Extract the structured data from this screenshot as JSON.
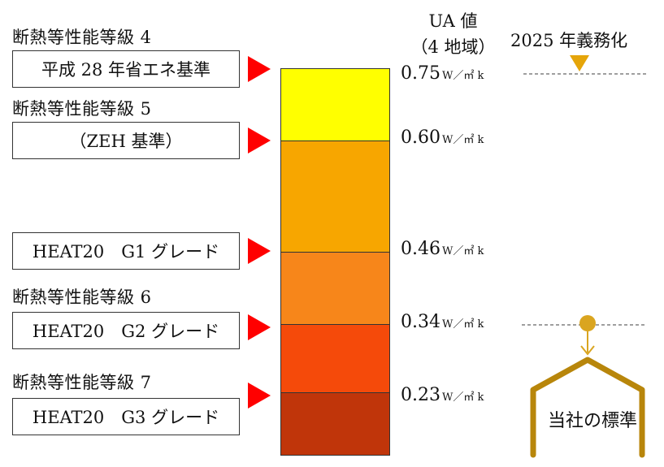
{
  "header": {
    "ua_title": "UA 値",
    "ua_region": "（4 地域）",
    "mandate": "2025 年義務化"
  },
  "grades": [
    {
      "label": "断熱等性能等級 4",
      "box": "平成 28 年省エネ基準"
    },
    {
      "label": "断熱等性能等級 5",
      "box": "（ZEH 基準）"
    },
    {
      "label": "",
      "box": "HEAT20　G1 グレード"
    },
    {
      "label": "断熱等性能等級 6",
      "box": "HEAT20　G2 グレード"
    },
    {
      "label": "断熱等性能等級 7",
      "box": "HEAT20　G3 グレード"
    }
  ],
  "ua_values": [
    {
      "value": "0.75",
      "unit": "W／㎡ k"
    },
    {
      "value": "0.60",
      "unit": "W／㎡ k"
    },
    {
      "value": "0.46",
      "unit": "W／㎡ k"
    },
    {
      "value": "0.34",
      "unit": "W／㎡ k"
    },
    {
      "value": "0.23",
      "unit": "W／㎡ k"
    }
  ],
  "colors": {
    "seg1": "#ffff00",
    "seg2": "#f7a600",
    "seg3": "#f7861a",
    "seg4": "#f54a0a",
    "seg5": "#c0350a",
    "arrow": "#ff0000",
    "mandate_marker": "#e5a50a",
    "company_marker": "#b8860b"
  },
  "company_standard": "当社の標準"
}
